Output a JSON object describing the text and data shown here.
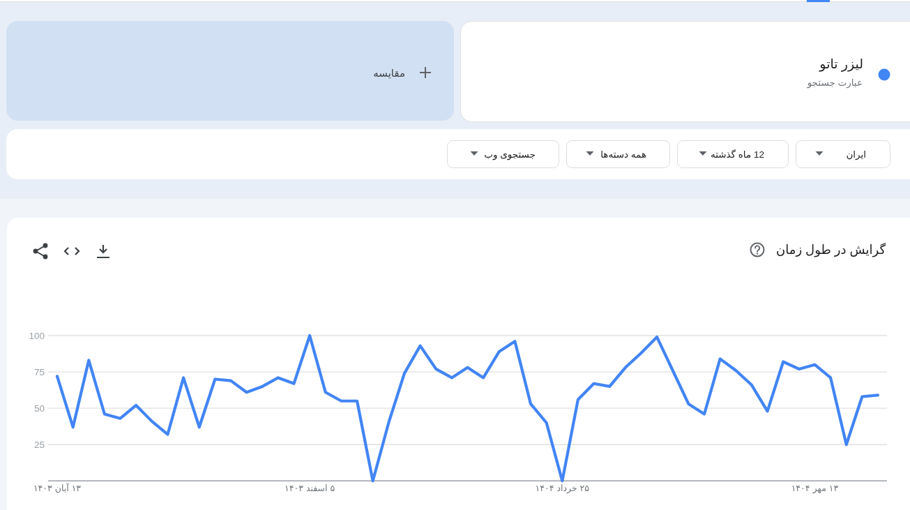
{
  "chart_data": {
    "type": "line",
    "title": "گرایش در طول زمان",
    "categories": [
      "۱۳ آبان ۱۴۰۳",
      null,
      null,
      null,
      null,
      null,
      null,
      null,
      null,
      null,
      null,
      null,
      null,
      null,
      null,
      null,
      "۵ اسفند ۱۴۰۳",
      null,
      null,
      null,
      null,
      null,
      null,
      null,
      null,
      null,
      null,
      null,
      null,
      null,
      null,
      null,
      "۲۵ خرداد ۱۴۰۴",
      null,
      null,
      null,
      null,
      null,
      null,
      null,
      null,
      null,
      null,
      null,
      null,
      null,
      null,
      null,
      "۱۳ مهر ۱۴۰۴",
      null,
      null,
      null,
      null
    ],
    "series": [
      {
        "name": "لیزر تاتو",
        "color": "#4285f4",
        "values": [
          72,
          37,
          83,
          46,
          43,
          52,
          41,
          32,
          71,
          37,
          70,
          69,
          61,
          65,
          71,
          67,
          100,
          61,
          55,
          55,
          0,
          40,
          74,
          93,
          77,
          71,
          78,
          71,
          89,
          96,
          53,
          40,
          0,
          56,
          67,
          65,
          78,
          88,
          99,
          76,
          53,
          46,
          84,
          76,
          66,
          48,
          82,
          77,
          80,
          71,
          25,
          58,
          59
        ]
      }
    ],
    "ylim": [
      0,
      100
    ],
    "yticks": [
      25,
      50,
      75,
      100
    ],
    "grid": "y",
    "legend": "top right",
    "line_style": "solid",
    "annotations": [
      "عبارت جستجو",
      "مقایسه",
      "ایران",
      "12 ماه گذشته",
      "همه دسته‌ها",
      "جستجوی وب"
    ]
  }
}
